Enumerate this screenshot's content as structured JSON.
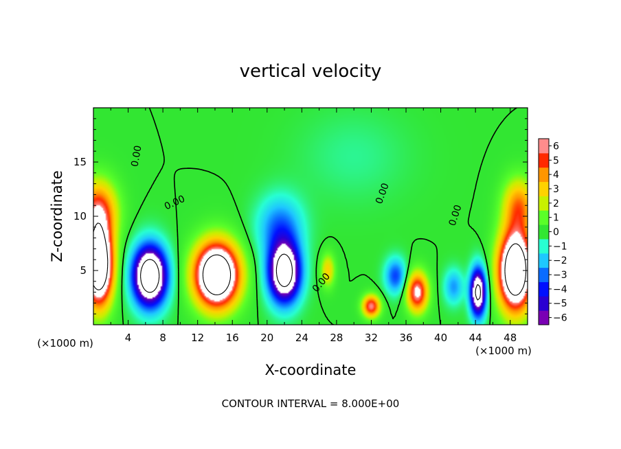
{
  "chart_data": {
    "type": "heatmap",
    "title": "vertical velocity",
    "xlabel": "X-coordinate",
    "ylabel": "Z-coordinate",
    "x_unit_left": "(×1000 m)",
    "x_unit_right": "(×1000 m)",
    "xlim": [
      0,
      50
    ],
    "ylim": [
      0,
      20
    ],
    "x_ticks": [
      4,
      8,
      12,
      16,
      20,
      24,
      28,
      32,
      36,
      40,
      44,
      48
    ],
    "x_tick_labels": [
      "4",
      "8",
      "12",
      "16",
      "20",
      "24",
      "28",
      "32",
      "36",
      "40",
      "44",
      "48"
    ],
    "y_ticks": [
      5,
      10,
      15
    ],
    "y_tick_labels": [
      "5",
      "10",
      "15"
    ],
    "colorbar": {
      "min": -6,
      "max": 6,
      "ticks": [
        6,
        5,
        4,
        3,
        2,
        1,
        0,
        -1,
        -2,
        -3,
        -4,
        -5,
        -6
      ],
      "tick_labels": [
        "6",
        "5",
        "4",
        "3",
        "2",
        "1",
        "0",
        "−1",
        "−2",
        "−3",
        "−4",
        "−5",
        "−6"
      ],
      "colors": [
        "#7a00b4",
        "#2a00d2",
        "#0010ff",
        "#0a6cff",
        "#1ec8ff",
        "#28ffd2",
        "#32e632",
        "#5aff28",
        "#c8f000",
        "#ffd200",
        "#ff9600",
        "#ff2a00",
        "#ff8c8c"
      ]
    },
    "features": [
      {
        "x": 0.6,
        "z": 5.5,
        "value": 12,
        "sx": 1.6,
        "sz": 3.6
      },
      {
        "x": 0.5,
        "z": 10.5,
        "value": 5,
        "sx": 2.2,
        "sz": 2.8
      },
      {
        "x": 6.5,
        "z": 4.5,
        "value": -11,
        "sx": 1.9,
        "sz": 2.7
      },
      {
        "x": 14.2,
        "z": 4.6,
        "value": 12,
        "sx": 2.5,
        "sz": 2.9
      },
      {
        "x": 22.0,
        "z": 4.8,
        "value": -10,
        "sx": 1.8,
        "sz": 2.7
      },
      {
        "x": 21.5,
        "z": 9.0,
        "value": -3,
        "sx": 2.6,
        "sz": 2.8
      },
      {
        "x": 27.0,
        "z": 5.0,
        "value": 3,
        "sx": 0.8,
        "sz": 1.5
      },
      {
        "x": 32.0,
        "z": 1.7,
        "value": 6,
        "sx": 1.0,
        "sz": 1.0
      },
      {
        "x": 34.8,
        "z": 4.5,
        "value": -3.5,
        "sx": 1.2,
        "sz": 1.6
      },
      {
        "x": 37.3,
        "z": 3.0,
        "value": 6.5,
        "sx": 1.2,
        "sz": 1.8
      },
      {
        "x": 41.5,
        "z": 3.5,
        "value": -2.5,
        "sx": 1.1,
        "sz": 1.6
      },
      {
        "x": 44.3,
        "z": 3.0,
        "value": -9,
        "sx": 0.9,
        "sz": 2.2
      },
      {
        "x": 48.6,
        "z": 5.0,
        "value": 12,
        "sx": 1.9,
        "sz": 3.6
      },
      {
        "x": 49.0,
        "z": 11.0,
        "value": 4,
        "sx": 1.8,
        "sz": 2.5
      },
      {
        "x": 30.0,
        "z": 15.5,
        "value": -0.6,
        "sx": 6.0,
        "sz": 4.0
      }
    ],
    "contour_labels": [
      "0.00",
      "0.00",
      "0.00",
      "0.00",
      "0.00"
    ],
    "footer": "CONTOUR INTERVAL = 8.000E+00"
  }
}
